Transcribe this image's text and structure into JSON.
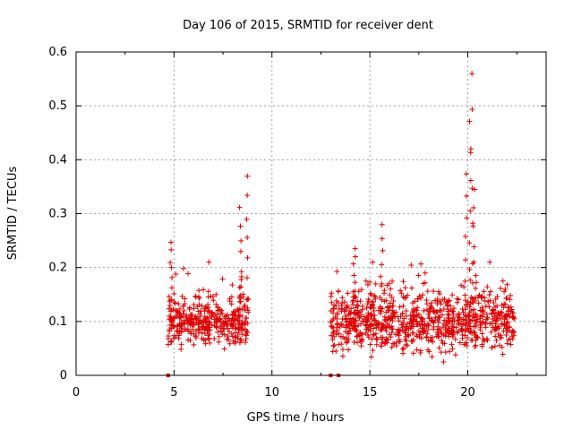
{
  "chart_data": {
    "type": "scatter",
    "title": "Day 106 of 2015, SRMTID for receiver dent",
    "xlabel": "GPS time / hours",
    "ylabel": "SRMTID / TECUs",
    "xlim": [
      0,
      24
    ],
    "ylim": [
      0,
      0.6
    ],
    "xticks": [
      0,
      5,
      10,
      15,
      20
    ],
    "xtick_labels": [
      "0",
      "5",
      "10",
      "15",
      "20"
    ],
    "yticks": [
      0,
      0.1,
      0.2,
      0.3,
      0.4,
      0.5,
      0.6
    ],
    "ytick_labels": [
      "0",
      "0.1",
      "0.2",
      "0.3",
      "0.4",
      "0.5",
      "0.6"
    ],
    "grid": true,
    "marker": "+",
    "color": "#e00000",
    "series": [
      {
        "name": "SRMTID",
        "segments": [
          {
            "x_start": 4.7,
            "x_end": 8.8,
            "baseline": 0.1,
            "spread": 0.04
          },
          {
            "x_start": 13.0,
            "x_end": 22.4,
            "baseline": 0.1,
            "spread": 0.05
          }
        ],
        "peaks": [
          {
            "x": 4.85,
            "y": 0.25
          },
          {
            "x": 8.4,
            "y": 0.31
          },
          {
            "x": 8.7,
            "y": 0.37
          },
          {
            "x": 14.2,
            "y": 0.24
          },
          {
            "x": 15.6,
            "y": 0.28
          },
          {
            "x": 19.9,
            "y": 0.37
          },
          {
            "x": 20.1,
            "y": 0.47
          },
          {
            "x": 20.2,
            "y": 0.56
          },
          {
            "x": 20.3,
            "y": 0.34
          }
        ],
        "zero_points": [
          4.7,
          13.0,
          13.4
        ]
      }
    ]
  }
}
